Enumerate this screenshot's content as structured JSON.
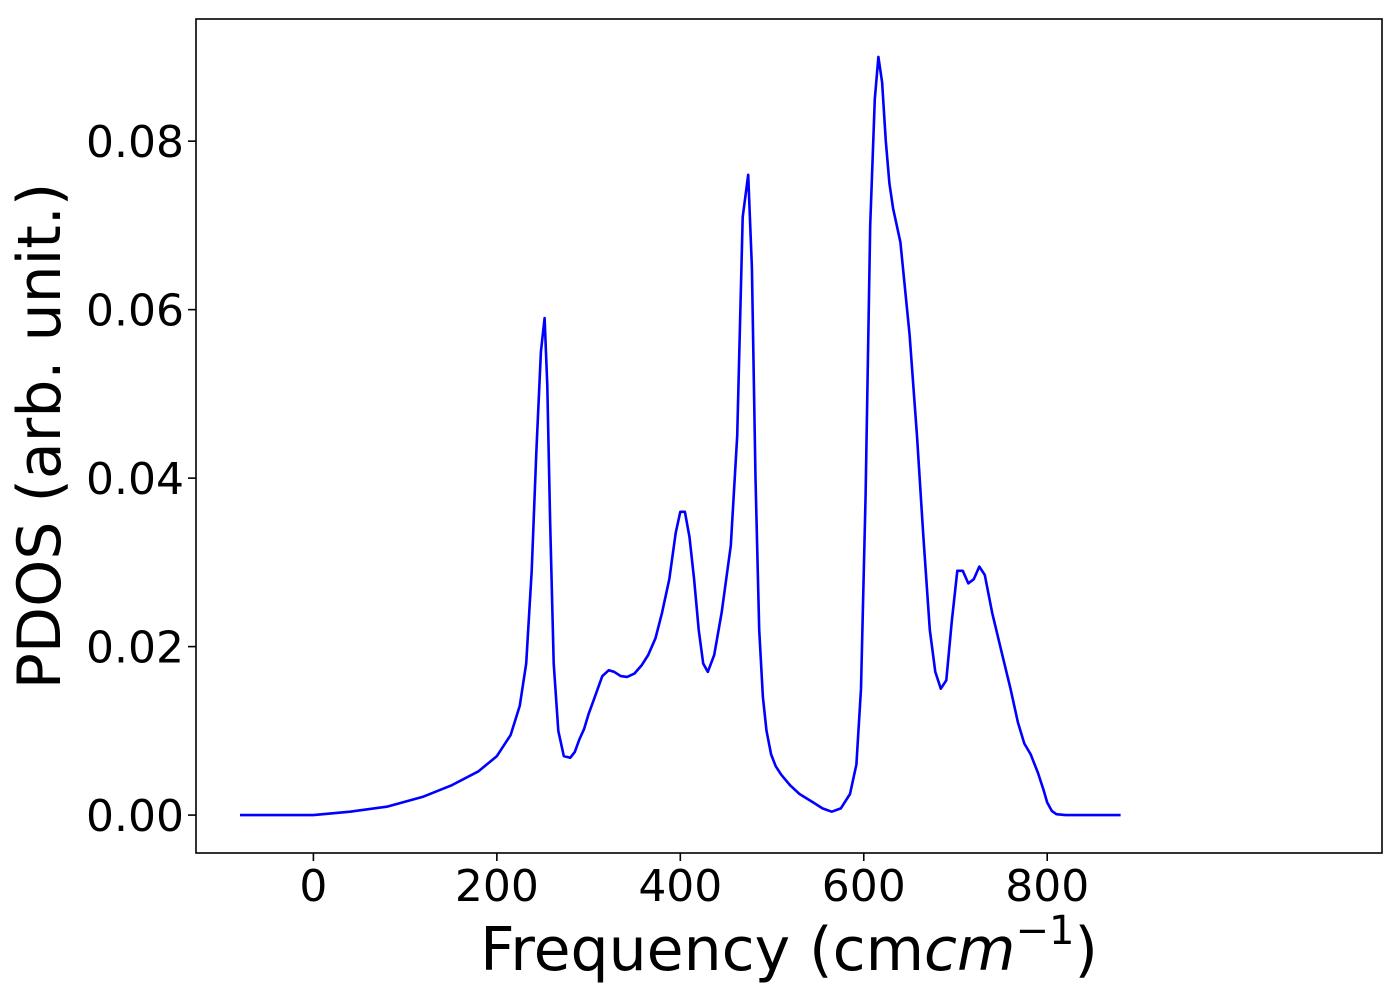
{
  "chart_data": {
    "type": "line",
    "title": "",
    "xlabel": "Frequency (cm",
    "xlabel_math_base": "cm",
    "xlabel_sup": "−1",
    "ylabel": "PDOS (arb. unit.)",
    "xlim": [
      -128,
      1165
    ],
    "ylim": [
      -0.0045,
      0.0945
    ],
    "xticks": [
      0,
      200,
      400,
      600,
      800
    ],
    "xtick_labels": [
      "0",
      "200",
      "400",
      "600",
      "800"
    ],
    "yticks": [
      0.0,
      0.02,
      0.04,
      0.06,
      0.08
    ],
    "ytick_labels": [
      "0.00",
      "0.02",
      "0.04",
      "0.06",
      "0.08"
    ],
    "grid": false,
    "series": [
      {
        "color": "#0000ff",
        "x": [
          -80,
          -40,
          0,
          40,
          80,
          120,
          150,
          180,
          200,
          215,
          225,
          232,
          238,
          243,
          248,
          252,
          255,
          258,
          262,
          267,
          273,
          280,
          285,
          290,
          295,
          300,
          305,
          315,
          322,
          328,
          335,
          342,
          350,
          358,
          365,
          373,
          380,
          388,
          395,
          400,
          405,
          410,
          415,
          420,
          425,
          430,
          437,
          445,
          455,
          462,
          468,
          474,
          478,
          482,
          486,
          490,
          494,
          499,
          504,
          510,
          520,
          530,
          545,
          555,
          565,
          575,
          585,
          592,
          597,
          602,
          607,
          612,
          616,
          620,
          624,
          628,
          632,
          640,
          650,
          658,
          665,
          672,
          678,
          684,
          690,
          696,
          702,
          708,
          714,
          720,
          726,
          732,
          740,
          750,
          760,
          768,
          775,
          782,
          790,
          796,
          800,
          805,
          810,
          820,
          840,
          880
        ],
        "values": [
          0.0,
          0.0,
          0.0,
          0.0004,
          0.001,
          0.0022,
          0.0035,
          0.0052,
          0.007,
          0.0095,
          0.013,
          0.018,
          0.029,
          0.043,
          0.055,
          0.059,
          0.051,
          0.035,
          0.018,
          0.01,
          0.007,
          0.0068,
          0.0075,
          0.009,
          0.0102,
          0.012,
          0.0135,
          0.0165,
          0.0172,
          0.017,
          0.0165,
          0.0164,
          0.0168,
          0.0178,
          0.019,
          0.021,
          0.024,
          0.028,
          0.0335,
          0.036,
          0.036,
          0.033,
          0.028,
          0.022,
          0.018,
          0.017,
          0.019,
          0.024,
          0.032,
          0.045,
          0.071,
          0.076,
          0.065,
          0.04,
          0.022,
          0.014,
          0.01,
          0.0072,
          0.0058,
          0.0048,
          0.0035,
          0.0025,
          0.0015,
          0.0008,
          0.0004,
          0.0008,
          0.0025,
          0.006,
          0.015,
          0.038,
          0.07,
          0.085,
          0.09,
          0.087,
          0.08,
          0.075,
          0.072,
          0.068,
          0.057,
          0.045,
          0.033,
          0.022,
          0.017,
          0.015,
          0.016,
          0.023,
          0.029,
          0.029,
          0.0275,
          0.028,
          0.0295,
          0.0285,
          0.024,
          0.0195,
          0.015,
          0.011,
          0.0085,
          0.0072,
          0.005,
          0.003,
          0.0015,
          0.0005,
          0.0001,
          0.0,
          0.0,
          0.0
        ]
      }
    ]
  }
}
